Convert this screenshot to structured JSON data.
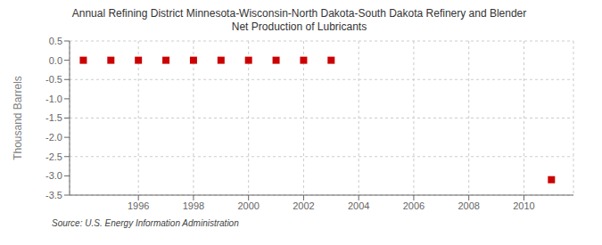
{
  "chart_data": {
    "type": "scatter",
    "title": "Annual Refining District Minnesota-Wisconsin-North Dakota-South Dakota Refinery and Blender",
    "subtitle": "Net Production of Lubricants",
    "y_label": "Thousand Barrels",
    "annotations": [
      "Source: U.S. Energy Information Administration"
    ],
    "x": [
      1994,
      1995,
      1996,
      1997,
      1998,
      1999,
      2000,
      2001,
      2002,
      2003,
      2011
    ],
    "values": [
      0,
      0,
      0,
      0,
      0,
      0,
      0,
      0,
      0,
      0,
      -3.1
    ],
    "color": "#cc0000",
    "marker": "square",
    "xlim": [
      1993.5,
      2011.8
    ],
    "ylim": [
      -3.5,
      0.5
    ],
    "xticks": [
      1996,
      1998,
      2000,
      2002,
      2004,
      2006,
      2008,
      2010
    ],
    "yticks": [
      0.5,
      {
        "value": 0,
        "label": "0.0"
      },
      -0.5,
      {
        "value": -1,
        "label": "-1.0"
      },
      -1.5,
      {
        "value": -2,
        "label": "-2.0"
      },
      -2.5,
      {
        "value": -3,
        "label": "-3.0"
      },
      -3.5
    ],
    "grid": true
  }
}
